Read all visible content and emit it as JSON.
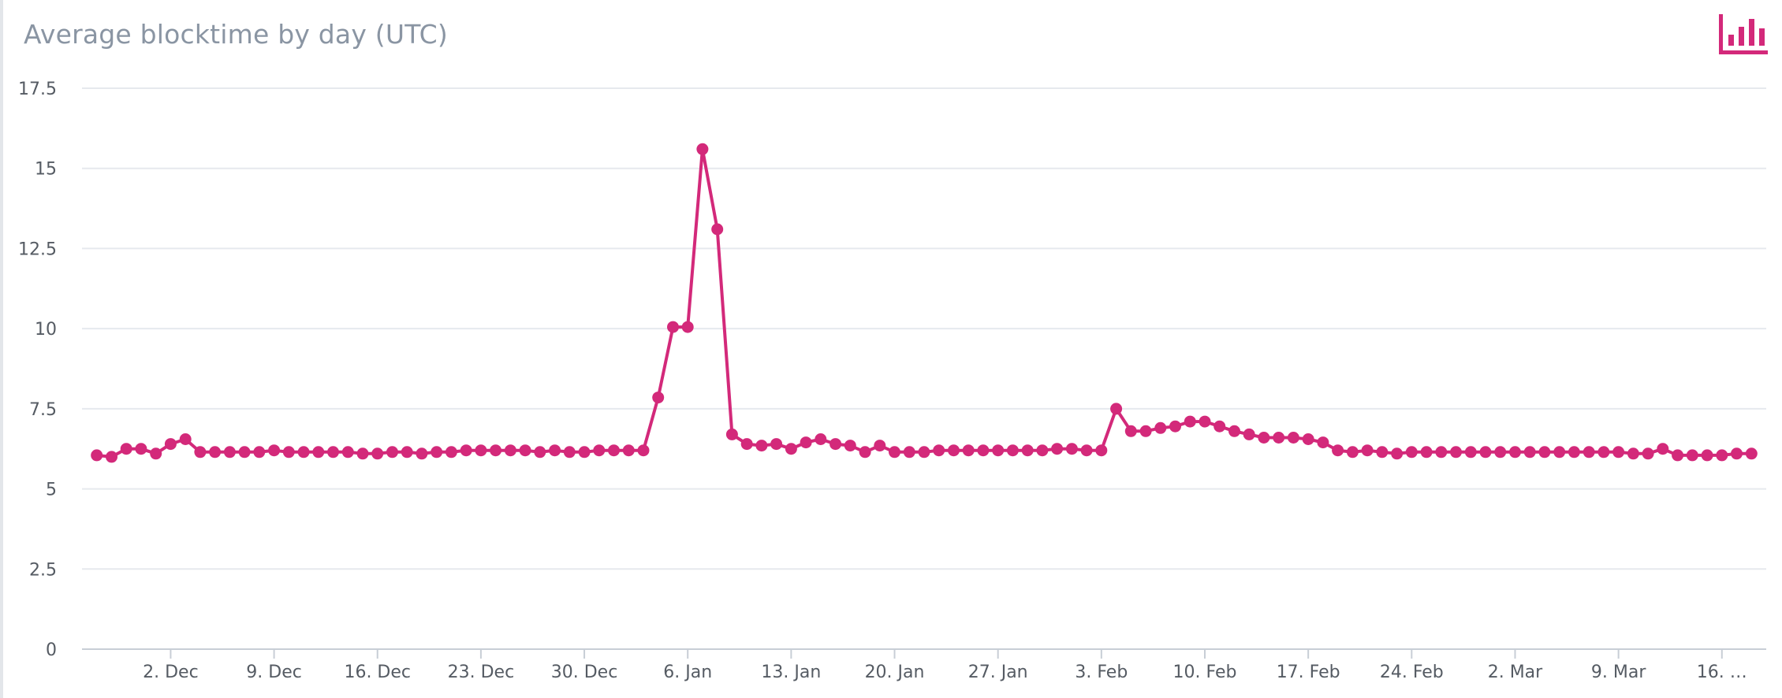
{
  "title": "Average blocktime by day (UTC)",
  "menu_icon": "bar-chart-icon",
  "colors": {
    "series": "#d3297a",
    "grid": "#e6e9ee",
    "axis_text": "#555b63",
    "title": "#8a95a3"
  },
  "chart_data": {
    "type": "line",
    "title": "Average blocktime by day (UTC)",
    "xlabel": "",
    "ylabel": "",
    "ylim": [
      0,
      17.5
    ],
    "yticks": [
      0,
      2.5,
      5,
      7.5,
      10,
      12.5,
      15,
      17.5
    ],
    "ytick_labels": [
      "0",
      "2.5",
      "5",
      "7.5",
      "10",
      "12.5",
      "15",
      "17.5"
    ],
    "xlim": [
      "2019-11-26",
      "2020-03-19"
    ],
    "xticks": [
      "2019-12-02",
      "2019-12-09",
      "2019-12-16",
      "2019-12-23",
      "2019-12-30",
      "2020-01-06",
      "2020-01-13",
      "2020-01-20",
      "2020-01-27",
      "2020-02-03",
      "2020-02-10",
      "2020-02-17",
      "2020-02-24",
      "2020-03-02",
      "2020-03-09",
      "2020-03-16"
    ],
    "xtick_labels": [
      "2. Dec",
      "9. Dec",
      "16. Dec",
      "23. Dec",
      "30. Dec",
      "6. Jan",
      "13. Jan",
      "20. Jan",
      "27. Jan",
      "3. Feb",
      "10. Feb",
      "17. Feb",
      "24. Feb",
      "2. Mar",
      "9. Mar",
      "16. …"
    ],
    "grid": true,
    "legend": "none",
    "x": [
      "2019-11-27",
      "2019-11-28",
      "2019-11-29",
      "2019-11-30",
      "2019-12-01",
      "2019-12-02",
      "2019-12-03",
      "2019-12-04",
      "2019-12-05",
      "2019-12-06",
      "2019-12-07",
      "2019-12-08",
      "2019-12-09",
      "2019-12-10",
      "2019-12-11",
      "2019-12-12",
      "2019-12-13",
      "2019-12-14",
      "2019-12-15",
      "2019-12-16",
      "2019-12-17",
      "2019-12-18",
      "2019-12-19",
      "2019-12-20",
      "2019-12-21",
      "2019-12-22",
      "2019-12-23",
      "2019-12-24",
      "2019-12-25",
      "2019-12-26",
      "2019-12-27",
      "2019-12-28",
      "2019-12-29",
      "2019-12-30",
      "2019-12-31",
      "2020-01-01",
      "2020-01-02",
      "2020-01-03",
      "2020-01-04",
      "2020-01-05",
      "2020-01-06",
      "2020-01-07",
      "2020-01-08",
      "2020-01-09",
      "2020-01-10",
      "2020-01-11",
      "2020-01-12",
      "2020-01-13",
      "2020-01-14",
      "2020-01-15",
      "2020-01-16",
      "2020-01-17",
      "2020-01-18",
      "2020-01-19",
      "2020-01-20",
      "2020-01-21",
      "2020-01-22",
      "2020-01-23",
      "2020-01-24",
      "2020-01-25",
      "2020-01-26",
      "2020-01-27",
      "2020-01-28",
      "2020-01-29",
      "2020-01-30",
      "2020-01-31",
      "2020-02-01",
      "2020-02-02",
      "2020-02-03",
      "2020-02-04",
      "2020-02-05",
      "2020-02-06",
      "2020-02-07",
      "2020-02-08",
      "2020-02-09",
      "2020-02-10",
      "2020-02-11",
      "2020-02-12",
      "2020-02-13",
      "2020-02-14",
      "2020-02-15",
      "2020-02-16",
      "2020-02-17",
      "2020-02-18",
      "2020-02-19",
      "2020-02-20",
      "2020-02-21",
      "2020-02-22",
      "2020-02-23",
      "2020-02-24",
      "2020-02-25",
      "2020-02-26",
      "2020-02-27",
      "2020-02-28",
      "2020-02-29",
      "2020-03-01",
      "2020-03-02",
      "2020-03-03",
      "2020-03-04",
      "2020-03-05",
      "2020-03-06",
      "2020-03-07",
      "2020-03-08",
      "2020-03-09",
      "2020-03-10",
      "2020-03-11",
      "2020-03-12",
      "2020-03-13",
      "2020-03-14",
      "2020-03-15",
      "2020-03-16",
      "2020-03-17",
      "2020-03-18"
    ],
    "series": [
      {
        "values": [
          6.05,
          6.0,
          6.25,
          6.25,
          6.1,
          6.4,
          6.55,
          6.15,
          6.15,
          6.15,
          6.15,
          6.15,
          6.2,
          6.15,
          6.15,
          6.15,
          6.15,
          6.15,
          6.1,
          6.1,
          6.15,
          6.15,
          6.1,
          6.15,
          6.15,
          6.2,
          6.2,
          6.2,
          6.2,
          6.2,
          6.15,
          6.2,
          6.15,
          6.15,
          6.2,
          6.2,
          6.2,
          6.2,
          7.85,
          10.05,
          10.05,
          15.6,
          13.1,
          6.7,
          6.4,
          6.35,
          6.4,
          6.25,
          6.45,
          6.55,
          6.4,
          6.35,
          6.15,
          6.35,
          6.15,
          6.15,
          6.15,
          6.2,
          6.2,
          6.2,
          6.2,
          6.2,
          6.2,
          6.2,
          6.2,
          6.25,
          6.25,
          6.2,
          6.2,
          7.5,
          6.8,
          6.8,
          6.9,
          6.95,
          7.1,
          7.1,
          6.95,
          6.8,
          6.7,
          6.6,
          6.6,
          6.6,
          6.55,
          6.45,
          6.2,
          6.15,
          6.2,
          6.15,
          6.1,
          6.15,
          6.15,
          6.15,
          6.15,
          6.15,
          6.15,
          6.15,
          6.15,
          6.15,
          6.15,
          6.15,
          6.15,
          6.15,
          6.15,
          6.15,
          6.1,
          6.1,
          6.25,
          6.05,
          6.05,
          6.05,
          6.05,
          6.1,
          6.1
        ]
      }
    ]
  }
}
